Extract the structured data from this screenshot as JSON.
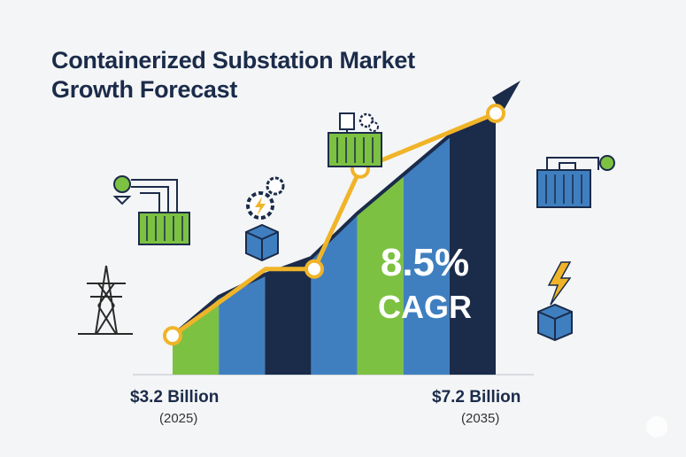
{
  "title_line1": "Containerized Substation Market",
  "title_line2": "Growth Forecast",
  "cagr": {
    "value": "8.5%",
    "label": "CAGR"
  },
  "start": {
    "value": "$3.2 Billion",
    "year": "(2025)"
  },
  "end": {
    "value": "$7.2 Billion",
    "year": "(2035)"
  },
  "colors": {
    "navy": "#1b2b4a",
    "blue": "#3f7fc0",
    "green": "#7dc142",
    "gold": "#f0b429"
  },
  "icons": [
    "transmission-tower-icon",
    "container-substation-icon",
    "gear-bolt-box-icon",
    "container-substation-gears-icon",
    "container-substation-blue-icon",
    "lightning-box-icon",
    "growth-arrow-icon"
  ],
  "chart_data": {
    "type": "bar",
    "title": "Containerized Substation Market Growth Forecast",
    "categories": [
      "2025",
      "",
      "",
      "",
      "",
      "",
      "",
      "2035"
    ],
    "series": [
      {
        "values": [
          3.2,
          3.9,
          4.3,
          4.6,
          5.4,
          6.1,
          6.8,
          7.2
        ]
      }
    ],
    "line_points": [
      {
        "x": "2025",
        "y": 3.2
      },
      {
        "x": "",
        "y": 4.4
      },
      {
        "x": "",
        "y": 4.4
      },
      {
        "x": "",
        "y": 6.2
      },
      {
        "x": "2035",
        "y": 7.2
      }
    ],
    "annotations": [
      "8.5% CAGR",
      "$3.2 Billion (2025)",
      "$7.2 Billion (2035)"
    ]
  }
}
